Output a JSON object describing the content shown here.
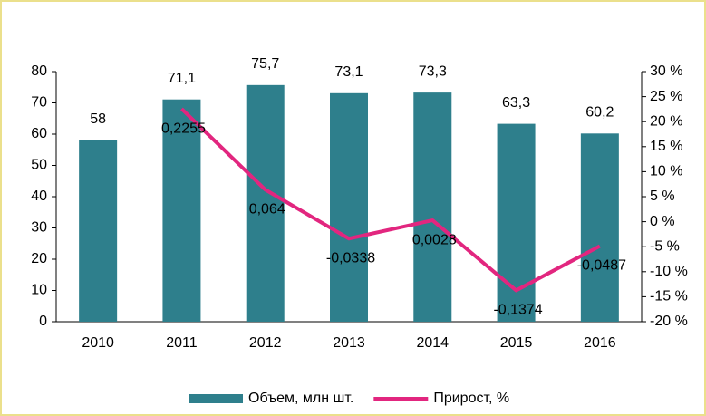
{
  "chart_data": {
    "type": "bar_line",
    "categories": [
      "2010",
      "2011",
      "2012",
      "2013",
      "2014",
      "2015",
      "2016"
    ],
    "series": [
      {
        "name": "Объем, млн шт.",
        "type": "bar",
        "color": "#2e7f8c",
        "values": [
          58,
          71.1,
          75.7,
          73.1,
          73.3,
          63.3,
          60.2
        ],
        "value_labels": [
          "58",
          "71,1",
          "75,7",
          "73,1",
          "73,3",
          "63,3",
          "60,2"
        ]
      },
      {
        "name": "Прирост, %",
        "type": "line",
        "axis": "y2",
        "color": "#e2267f",
        "values": [
          null,
          22.55,
          6.4,
          -3.38,
          0.28,
          -13.74,
          -4.87
        ],
        "value_labels": [
          null,
          "0,2255",
          "0,064",
          "-0,0338",
          "0,0028",
          "-0,1374",
          "-0,0487"
        ]
      }
    ],
    "ylim": [
      0,
      80
    ],
    "yticks": [
      0,
      10,
      20,
      30,
      40,
      50,
      60,
      70,
      80
    ],
    "y2lim": [
      -20,
      30
    ],
    "y2ticks": [
      {
        "value": -20,
        "label": "-20 %"
      },
      {
        "value": -15,
        "label": "-15 %"
      },
      {
        "value": -10,
        "label": "-10 %"
      },
      {
        "value": -5,
        "label": "-5 %"
      },
      {
        "value": 0,
        "label": "0 %"
      },
      {
        "value": 5,
        "label": "5 %"
      },
      {
        "value": 10,
        "label": "10 %"
      },
      {
        "value": 15,
        "label": "15 %"
      },
      {
        "value": 20,
        "label": "20 %"
      },
      {
        "value": 25,
        "label": "25 %"
      },
      {
        "value": 30,
        "label": "30 %"
      }
    ],
    "grid": false,
    "legend": "bottom"
  }
}
